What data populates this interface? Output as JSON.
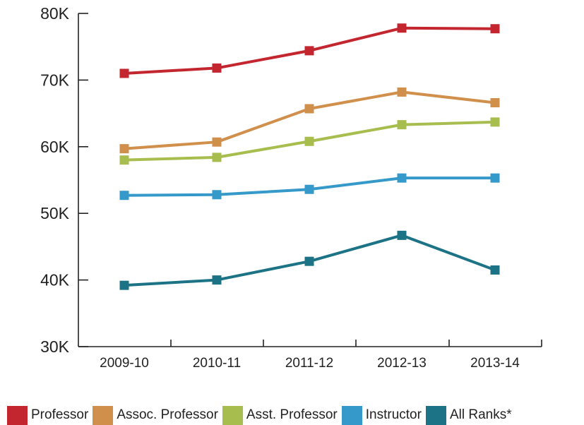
{
  "chart_data": {
    "type": "line",
    "categories": [
      "2009-10",
      "2010-11",
      "2011-12",
      "2012-13",
      "2013-14"
    ],
    "y_ticks": [
      "30K",
      "40K",
      "50K",
      "60K",
      "70K",
      "80K"
    ],
    "ylim": [
      30000,
      80000
    ],
    "grid": false,
    "legend_position": "bottom",
    "series": [
      {
        "name": "Professor",
        "color": "#c3262f",
        "values": [
          71000,
          71800,
          74400,
          77800,
          77700
        ]
      },
      {
        "name": "Assoc. Professor",
        "color": "#d18f4c",
        "values": [
          59700,
          60700,
          65700,
          68200,
          66600
        ]
      },
      {
        "name": "Asst. Professor",
        "color": "#a7bd4e",
        "values": [
          58000,
          58400,
          60800,
          63300,
          63700
        ]
      },
      {
        "name": "Instructor",
        "color": "#3599c9",
        "values": [
          52700,
          52800,
          53600,
          55300,
          55300
        ]
      },
      {
        "name": "All Ranks*",
        "color": "#1d7386",
        "values": [
          39200,
          40000,
          42800,
          46700,
          41500
        ]
      }
    ]
  }
}
